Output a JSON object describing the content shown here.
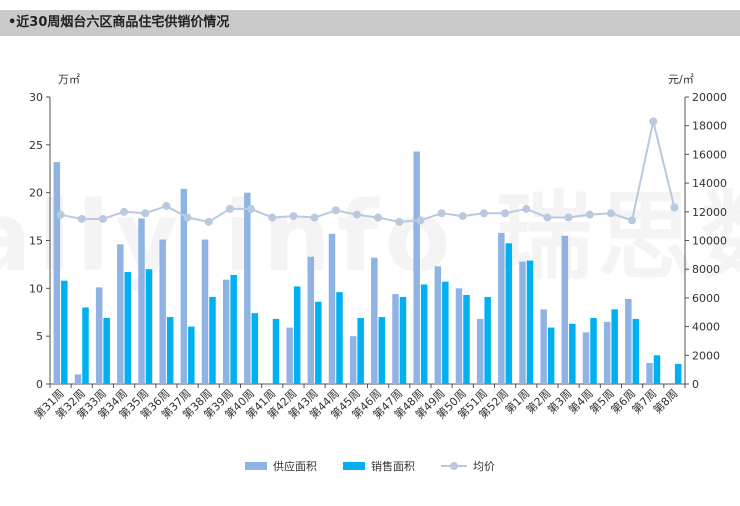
{
  "title": "•近30周烟台六区商品住宅供销价情况",
  "chart_data": {
    "type": "bar",
    "categories": [
      "第31周",
      "第32周",
      "第33周",
      "第34周",
      "第35周",
      "第36周",
      "第37周",
      "第38周",
      "第39周",
      "第40周",
      "第41周",
      "第42周",
      "第43周",
      "第44周",
      "第45周",
      "第46周",
      "第47周",
      "第48周",
      "第49周",
      "第50周",
      "第51周",
      "第52周",
      "第1周",
      "第2周",
      "第3周",
      "第4周",
      "第5周",
      "第6周",
      "第7周",
      "第8周"
    ],
    "series": [
      {
        "name": "供应面积",
        "kind": "bar",
        "axis": "left",
        "color": "#8fb4e3",
        "values": [
          23.2,
          1.0,
          10.1,
          14.6,
          17.3,
          15.1,
          20.4,
          15.1,
          10.9,
          20.0,
          0,
          5.9,
          13.3,
          15.7,
          5.0,
          13.2,
          9.4,
          24.3,
          12.3,
          10.0,
          6.8,
          15.8,
          12.8,
          7.8,
          15.5,
          5.4,
          6.5,
          8.9,
          2.2,
          0
        ]
      },
      {
        "name": "销售面积",
        "kind": "bar",
        "axis": "left",
        "color": "#00b0f0",
        "values": [
          10.8,
          8.0,
          6.9,
          11.7,
          12.0,
          7.0,
          6.0,
          9.1,
          11.4,
          7.4,
          6.8,
          10.2,
          8.6,
          9.6,
          6.9,
          7.0,
          9.1,
          10.4,
          10.7,
          9.3,
          9.1,
          14.7,
          12.9,
          5.9,
          6.3,
          6.9,
          7.8,
          6.8,
          3.0,
          2.1
        ]
      },
      {
        "name": "均价",
        "kind": "line",
        "axis": "right",
        "color": "#b9c9e0",
        "values": [
          11800,
          11500,
          11500,
          12000,
          11900,
          12400,
          11600,
          11300,
          12200,
          12200,
          11600,
          11700,
          11600,
          12100,
          11800,
          11600,
          11300,
          11400,
          11900,
          11700,
          11900,
          11900,
          12200,
          11600,
          11600,
          11800,
          11900,
          11400,
          18300,
          12300
        ]
      }
    ],
    "y_left": {
      "label": "万㎡",
      "ylim": [
        0,
        30
      ],
      "ticks": [
        "0",
        "5",
        "10",
        "15",
        "20",
        "25",
        "30"
      ],
      "tick_values": [
        0,
        5,
        10,
        15,
        20,
        25,
        30
      ]
    },
    "y_right": {
      "label": "元/㎡",
      "ylim": [
        0,
        20000
      ],
      "ticks": [
        "0",
        "2000",
        "4000",
        "6000",
        "8000",
        "10000",
        "12000",
        "14000",
        "16000",
        "18000",
        "20000"
      ],
      "tick_values": [
        0,
        2000,
        4000,
        6000,
        8000,
        10000,
        12000,
        14000,
        16000,
        18000,
        20000
      ]
    },
    "legend_position": "bottom",
    "grid": false,
    "watermark": "Really info 瑞思数据"
  }
}
